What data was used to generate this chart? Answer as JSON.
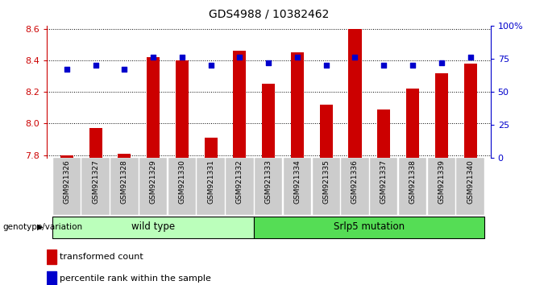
{
  "title": "GDS4988 / 10382462",
  "samples": [
    "GSM921326",
    "GSM921327",
    "GSM921328",
    "GSM921329",
    "GSM921330",
    "GSM921331",
    "GSM921332",
    "GSM921333",
    "GSM921334",
    "GSM921335",
    "GSM921336",
    "GSM921337",
    "GSM921338",
    "GSM921339",
    "GSM921340"
  ],
  "bar_values": [
    7.8,
    7.97,
    7.81,
    8.42,
    8.4,
    7.91,
    8.46,
    8.25,
    8.45,
    8.12,
    8.6,
    8.09,
    8.22,
    8.32,
    8.38
  ],
  "percentile_values": [
    67,
    70,
    67,
    76,
    76,
    70,
    76,
    72,
    76,
    70,
    76,
    70,
    70,
    72,
    76
  ],
  "ylim_left": [
    7.78,
    8.62
  ],
  "ylim_right": [
    0,
    100
  ],
  "yticks_left": [
    7.8,
    8.0,
    8.2,
    8.4,
    8.6
  ],
  "yticks_right": [
    0,
    25,
    50,
    75,
    100
  ],
  "ytick_right_labels": [
    "0",
    "25",
    "50",
    "75",
    "100%"
  ],
  "bar_color": "#cc0000",
  "dot_color": "#0000cc",
  "wild_type_count": 7,
  "mutation_count": 8,
  "wild_type_label": "wild type",
  "mutation_label": "Srlp5 mutation",
  "wild_type_color": "#bbffbb",
  "mutation_color": "#55dd55",
  "legend_bar_label": "transformed count",
  "legend_dot_label": "percentile rank within the sample",
  "genotype_label": "genotype/variation",
  "left_axis_color": "#cc0000",
  "right_axis_color": "#0000cc",
  "tick_bg_color": "#cccccc"
}
